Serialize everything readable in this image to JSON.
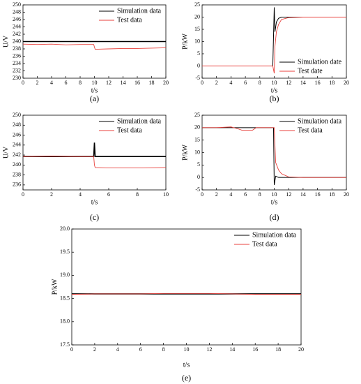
{
  "chart_data": [
    {
      "type": "line",
      "caption": "(a)",
      "xlabel": "t/s",
      "ylabel": "U/V",
      "legend": "upper right",
      "x": [
        0,
        2,
        4,
        6,
        8,
        9.9,
        10,
        10.1,
        12,
        14,
        16,
        18,
        20
      ],
      "series": [
        {
          "name": "Simulation data",
          "color": "#000000",
          "values": [
            240,
            240,
            240,
            240,
            240,
            240,
            240,
            240,
            240,
            240,
            240,
            240,
            240
          ]
        },
        {
          "name": "Test data",
          "color": "#e8413c",
          "values": [
            239.3,
            239.2,
            239.3,
            239.1,
            239.2,
            239.2,
            238.5,
            237.9,
            238.0,
            238.1,
            238.1,
            238.2,
            238.3
          ]
        }
      ],
      "xlim": [
        0,
        20
      ],
      "xticks": [
        0,
        2,
        4,
        6,
        8,
        10,
        12,
        14,
        16,
        18,
        20
      ],
      "ylim": [
        230,
        250
      ],
      "yticks": [
        230,
        232,
        234,
        236,
        238,
        240,
        242,
        244,
        246,
        248,
        250
      ]
    },
    {
      "type": "line",
      "caption": "(b)",
      "xlabel": "t/s",
      "ylabel": "P/kW",
      "legend": "lower right",
      "x": [
        0,
        5,
        9.8,
        10,
        10.1,
        10.3,
        10.6,
        11,
        12,
        14,
        20
      ],
      "series": [
        {
          "name": "Simulation date",
          "color": "#000000",
          "values": [
            0,
            0,
            0,
            24,
            14,
            18,
            19.5,
            20,
            20,
            20,
            20
          ]
        },
        {
          "name": "Test date",
          "color": "#e8413c",
          "values": [
            0,
            0,
            0,
            -3,
            8,
            14,
            17,
            19,
            19.8,
            20,
            20
          ]
        }
      ],
      "xlim": [
        0,
        20
      ],
      "xticks": [
        0,
        2,
        4,
        6,
        8,
        10,
        12,
        14,
        16,
        18,
        20
      ],
      "ylim": [
        -5,
        25
      ],
      "yticks": [
        -5,
        0,
        5,
        10,
        15,
        20,
        25
      ]
    },
    {
      "type": "line",
      "caption": "(c)",
      "xlabel": "t/s",
      "ylabel": "U/V",
      "legend": "upper right",
      "x": [
        0,
        2,
        4,
        4.95,
        5,
        5.05,
        6,
        8,
        10
      ],
      "series": [
        {
          "name": "Simulation data",
          "color": "#000000",
          "values": [
            241.7,
            241.7,
            241.7,
            241.7,
            244.5,
            241.7,
            241.7,
            241.7,
            241.7
          ]
        },
        {
          "name": "Test data",
          "color": "#e8413c",
          "values": [
            241.7,
            241.8,
            241.7,
            241.7,
            240.0,
            239.5,
            239.4,
            239.4,
            239.5
          ]
        }
      ],
      "xlim": [
        0,
        10
      ],
      "xticks": [
        0,
        2,
        4,
        6,
        8,
        10
      ],
      "ylim": [
        235,
        250
      ],
      "yticks": [
        236,
        238,
        240,
        242,
        244,
        246,
        248,
        250
      ]
    },
    {
      "type": "line",
      "caption": "(d)",
      "xlabel": "t/s",
      "ylabel": "P/kW",
      "legend": "upper right",
      "x": [
        0,
        2,
        4,
        5,
        5.5,
        7,
        7.5,
        9.9,
        10,
        10.2,
        10.6,
        11,
        12,
        14,
        20
      ],
      "series": [
        {
          "name": "Simulation data",
          "color": "#000000",
          "values": [
            20,
            20,
            20,
            20,
            20,
            20,
            20,
            20,
            -3,
            0.5,
            0,
            0,
            0,
            0,
            0
          ]
        },
        {
          "name": "Test data",
          "color": "#e8413c",
          "values": [
            20,
            20,
            20.3,
            19.5,
            19,
            19,
            20,
            20,
            20,
            6,
            3,
            1.5,
            0.2,
            0,
            0
          ]
        }
      ],
      "xlim": [
        0,
        20
      ],
      "xticks": [
        0,
        2,
        4,
        6,
        8,
        10,
        12,
        14,
        16,
        18,
        20
      ],
      "ylim": [
        -5,
        25
      ],
      "yticks": [
        -5,
        0,
        5,
        10,
        15,
        20,
        25
      ]
    },
    {
      "type": "line",
      "caption": "(e)",
      "xlabel": "t/s",
      "ylabel": "P/kW",
      "legend": "upper right",
      "x": [
        0,
        2,
        4,
        6,
        8,
        10,
        12,
        14,
        16,
        18,
        20
      ],
      "series": [
        {
          "name": "Simulation data",
          "color": "#000000",
          "values": [
            18.6,
            18.6,
            18.6,
            18.6,
            18.6,
            18.6,
            18.6,
            18.6,
            18.6,
            18.6,
            18.6
          ]
        },
        {
          "name": "Test data",
          "color": "#e8413c",
          "values": [
            18.59,
            18.6,
            18.6,
            18.6,
            18.61,
            18.61,
            18.61,
            18.6,
            18.59,
            18.59,
            18.59
          ]
        }
      ],
      "xlim": [
        0,
        20
      ],
      "xticks": [
        0,
        2,
        4,
        6,
        8,
        10,
        12,
        14,
        16,
        18,
        20
      ],
      "ylim": [
        17.5,
        20
      ],
      "yticks": [
        17.5,
        {
          "value": 18,
          "label": "18.0"
        },
        18.5,
        {
          "value": 19,
          "label": "19.0"
        },
        19.5,
        {
          "value": 20,
          "label": "20.0"
        }
      ]
    }
  ]
}
